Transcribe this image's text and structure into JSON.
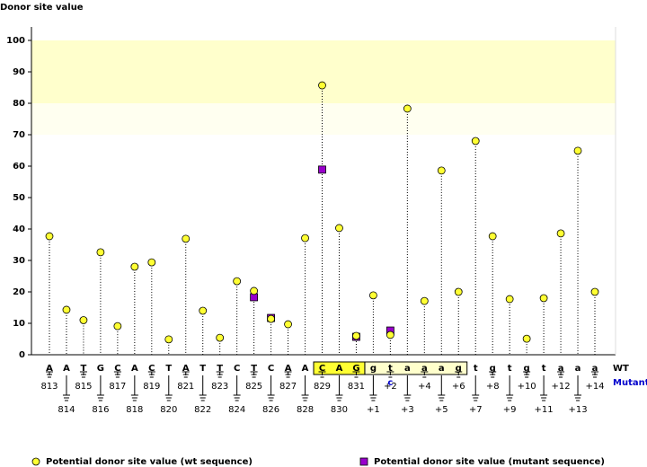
{
  "chart_data": {
    "type": "stem",
    "title": "Donor site value",
    "categories": [
      "813",
      "814",
      "815",
      "816",
      "817",
      "818",
      "819",
      "820",
      "821",
      "822",
      "823",
      "824",
      "825",
      "826",
      "827",
      "828",
      "829",
      "830",
      "831",
      "+1",
      "+2",
      "+3",
      "+4",
      "+5",
      "+6",
      "+7",
      "+8",
      "+9",
      "+10",
      "+11",
      "+12",
      "+13",
      "+14"
    ],
    "wt_sequence": [
      "A",
      "A",
      "T",
      "G",
      "C",
      "A",
      "C",
      "T",
      "A",
      "T",
      "T",
      "C",
      "T",
      "C",
      "A",
      "A",
      "C",
      "A",
      "G",
      "g",
      "t",
      "a",
      "a",
      "a",
      "g",
      "t",
      "g",
      "t",
      "g",
      "t",
      "a",
      "a",
      "a"
    ],
    "mutant_sequence": [
      null,
      null,
      null,
      null,
      null,
      null,
      null,
      null,
      null,
      null,
      null,
      null,
      null,
      null,
      null,
      null,
      null,
      null,
      null,
      null,
      "c",
      null,
      null,
      null,
      null,
      null,
      null,
      null,
      null,
      null,
      null,
      null,
      null
    ],
    "row_labels": [
      "WT",
      "Mutant"
    ],
    "series": [
      {
        "name": "Potential donor site value (wt sequence)",
        "color": "#ffff33",
        "marker": "circle",
        "values": [
          37.7,
          14.3,
          11,
          32.6,
          9.1,
          28,
          29.4,
          4.9,
          36.9,
          14,
          5.4,
          23.4,
          20.3,
          11.4,
          9.7,
          37.1,
          85.7,
          40.3,
          6,
          18.9,
          6.3,
          78.3,
          17.1,
          58.6,
          20,
          68,
          37.7,
          17.7,
          5.1,
          18,
          38.6,
          64.9,
          20
        ]
      },
      {
        "name": "Potential donor site value (mutant sequence)",
        "color": "#9900cc",
        "marker": "square",
        "values": [
          null,
          null,
          null,
          null,
          null,
          null,
          null,
          null,
          null,
          null,
          null,
          null,
          18.3,
          11.7,
          null,
          null,
          58.9,
          null,
          5.7,
          null,
          7.7,
          null,
          null,
          null,
          null,
          null,
          null,
          null,
          null,
          null,
          null,
          null,
          null
        ]
      }
    ],
    "ylim": [
      0,
      100
    ],
    "yticks": [
      0,
      10,
      20,
      30,
      40,
      50,
      60,
      70,
      80,
      90,
      100
    ],
    "shaded_range": [
      80,
      100
    ],
    "faded_range": [
      70,
      80
    ]
  }
}
